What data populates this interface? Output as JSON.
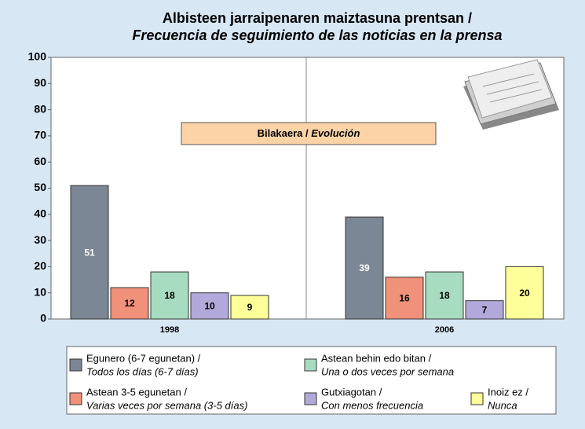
{
  "chart_data": {
    "type": "bar",
    "title": "Albisteen jarraipenaren maiztasuna prentsan /",
    "subtitle": "Frecuencia de seguimiento de las noticias en la prensa",
    "annotation": {
      "text": "Bilakaera /",
      "text_translation": "Evolución"
    },
    "categories": [
      "1998",
      "2006"
    ],
    "series": [
      {
        "name": "Egunero (6-7 egunetan) /",
        "name_translation": "Todos los días (6-7 días)",
        "color": "#7b8794",
        "values": [
          51,
          39
        ]
      },
      {
        "name": "Astean 3-5 egunetan /",
        "name_translation": "Varias veces por semana (3-5 días)",
        "color": "#f0917a",
        "values": [
          12,
          16
        ]
      },
      {
        "name": "Astean behin edo bitan /",
        "name_translation": "Una o dos veces por semana",
        "color": "#a8dcc0",
        "values": [
          18,
          18
        ]
      },
      {
        "name": "Gutxiagotan /",
        "name_translation": "Con menos frecuencia",
        "color": "#b2a9da",
        "values": [
          10,
          7
        ]
      },
      {
        "name": "Inoiz ez /",
        "name_translation": "Nunca",
        "color": "#ffff99",
        "values": [
          9,
          20
        ]
      }
    ],
    "ylim": [
      0,
      100
    ],
    "yticks": [
      0,
      10,
      20,
      30,
      40,
      50,
      60,
      70,
      80,
      90,
      100
    ],
    "grid": false,
    "legend": "bottom"
  }
}
